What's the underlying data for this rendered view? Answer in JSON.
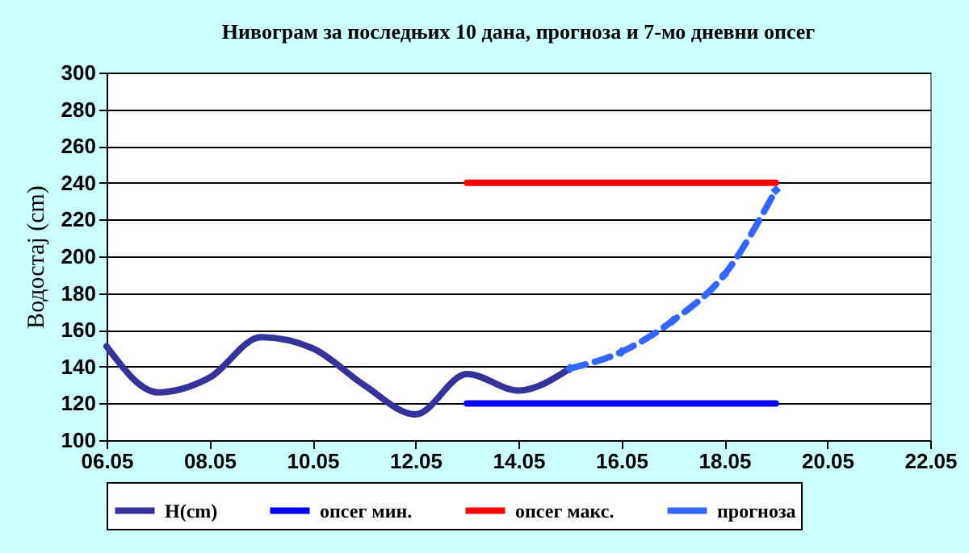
{
  "chart_data": {
    "type": "line",
    "title": "Нивограм за последњих 10 дана, прогноза и 7-мо дневни опсег",
    "ylabel": "Водостај (cm)",
    "xlim": [
      "--05-06",
      "--05-22"
    ],
    "xticks": [
      {
        "value": "--05-06",
        "label": "06.05"
      },
      {
        "value": "--05-08",
        "label": "08.05"
      },
      {
        "value": "--05-10",
        "label": "10.05"
      },
      {
        "value": "--05-12",
        "label": "12.05"
      },
      {
        "value": "--05-14",
        "label": "14.05"
      },
      {
        "value": "--05-16",
        "label": "16.05"
      },
      {
        "value": "--05-18",
        "label": "18.05"
      },
      {
        "value": "--05-20",
        "label": "20.05"
      },
      {
        "value": "--05-22",
        "label": "22.05"
      }
    ],
    "ylim": [
      100,
      300
    ],
    "yticks": [
      100,
      120,
      140,
      160,
      180,
      200,
      220,
      240,
      260,
      280,
      300
    ],
    "grid": "y",
    "legend": "bottom",
    "series": [
      {
        "name": "H(cm)",
        "color": "#333399",
        "x": [
          "--05-06",
          "--05-07",
          "--05-08",
          "--05-09",
          "--05-10",
          "--05-11",
          "--05-12",
          "--05-13",
          "--05-14",
          "--05-15"
        ],
        "values": [
          151,
          126,
          134,
          156,
          150,
          130,
          114,
          136,
          127,
          139
        ]
      },
      {
        "name": "опсег мин.",
        "color": "#0000ff",
        "x": [
          "--05-13",
          "--05-19"
        ],
        "values": [
          120,
          120
        ]
      },
      {
        "name": "опсег макс.",
        "color": "#ff0000",
        "x": [
          "--05-13",
          "--05-19"
        ],
        "values": [
          240,
          240
        ]
      },
      {
        "name": "прогноза",
        "color": "#3366ff",
        "marker": "diamond",
        "line_style": "dashed",
        "x": [
          "--05-15",
          "--05-16",
          "--05-17",
          "--05-18",
          "--05-19"
        ],
        "values": [
          139,
          148,
          165,
          190,
          236
        ]
      }
    ]
  }
}
